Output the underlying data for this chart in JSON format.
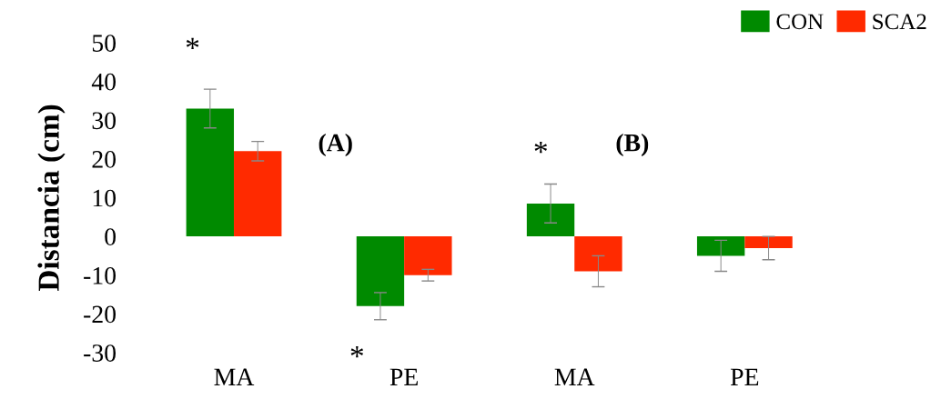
{
  "chart_data": {
    "type": "bar",
    "ylabel": "Distancia (cm)",
    "categories": [
      "MA",
      "PE",
      "MA",
      "PE"
    ],
    "series": [
      {
        "name": "CON",
        "color": "#008a00",
        "values": [
          33,
          -18,
          8.5,
          -5
        ],
        "errors": [
          5,
          3.5,
          5,
          4
        ]
      },
      {
        "name": "SCA2",
        "color": "#ff2a00",
        "values": [
          22,
          -10,
          -9,
          -3
        ],
        "errors": [
          2.5,
          1.5,
          4,
          3
        ]
      }
    ],
    "ylim": [
      -30,
      50
    ],
    "yticks": [
      -30,
      -20,
      -10,
      0,
      10,
      20,
      30,
      40,
      50
    ],
    "legend": "top right",
    "grid": false,
    "annotations": [
      "*",
      "*",
      "*",
      "(A)",
      "(B)"
    ]
  }
}
